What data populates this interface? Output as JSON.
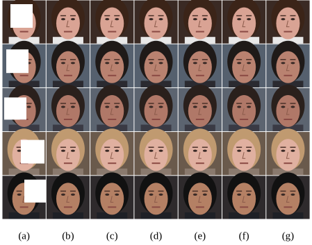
{
  "labels": [
    "(a)",
    "(b)",
    "(c)",
    "(d)",
    "(e)",
    "(f)",
    "(g)"
  ]
}
